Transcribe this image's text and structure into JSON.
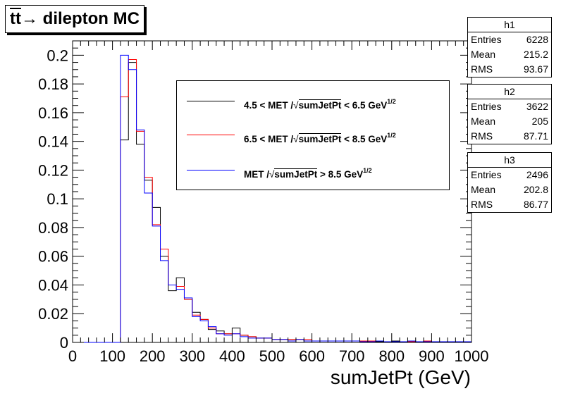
{
  "title": {
    "text": "t̅t→ dilepton MC",
    "tt": "tt",
    "rest": "→ dilepton MC"
  },
  "stats": [
    {
      "name": "h1",
      "entries_label": "Entries",
      "entries": "6228",
      "mean_label": "Mean",
      "mean": "215.2",
      "rms_label": "RMS",
      "rms": "93.67"
    },
    {
      "name": "h2",
      "entries_label": "Entries",
      "entries": "3622",
      "mean_label": "Mean",
      "mean": "205",
      "rms_label": "RMS",
      "rms": "87.71"
    },
    {
      "name": "h3",
      "entries_label": "Entries",
      "entries": "2496",
      "mean_label": "Mean",
      "mean": "202.8",
      "rms_label": "RMS",
      "rms": "86.77"
    }
  ],
  "legend": [
    {
      "pre": "4.5 < MET /",
      "sqrt": "sumJetPt",
      "post": " < 6.5 GeV",
      "sup": "1/2",
      "color": "#000000"
    },
    {
      "pre": "6.5 < MET /",
      "sqrt": "sumJetPt",
      "post": " < 8.5 GeV",
      "sup": "1/2",
      "color": "#ff0000"
    },
    {
      "pre": "MET /",
      "sqrt": "sumJetPt",
      "post": " > 8.5 GeV",
      "sup": "1/2",
      "color": "#0000ff"
    }
  ],
  "chart_data": {
    "type": "histogram",
    "xlabel": "sumJetPt (GeV)",
    "ylabel": "",
    "xlim": [
      0,
      1000
    ],
    "ylim": [
      0,
      0.21
    ],
    "bin_width": 20,
    "x_ticks": [
      "0",
      "100",
      "200",
      "300",
      "400",
      "500",
      "600",
      "700",
      "800",
      "900",
      "1000"
    ],
    "y_ticks": [
      "0",
      "0.02",
      "0.04",
      "0.06",
      "0.08",
      "0.1",
      "0.12",
      "0.14",
      "0.16",
      "0.18",
      "0.2"
    ],
    "series": [
      {
        "name": "h1",
        "color": "#000000",
        "values": [
          0,
          0,
          0,
          0,
          0,
          0,
          0.141,
          0.195,
          0.138,
          0.113,
          0.094,
          0.06,
          0.036,
          0.045,
          0.03,
          0.021,
          0.016,
          0.009,
          0.008,
          0.006,
          0.01,
          0.005,
          0.004,
          0.003,
          0.003,
          0.002,
          0.002,
          0.002,
          0.002,
          0.001,
          0.001,
          0.001,
          0.001,
          0.001,
          0.001,
          0.001,
          0.001,
          0.0005,
          0.0005,
          0.0005,
          0.001,
          0.0005,
          0.0005,
          0.0005,
          0.0005,
          0.0005,
          0.0005,
          0.0005,
          0.0005,
          0.0005
        ]
      },
      {
        "name": "h2",
        "color": "#ff0000",
        "values": [
          0,
          0,
          0,
          0,
          0,
          0,
          0.171,
          0.197,
          0.147,
          0.115,
          0.082,
          0.065,
          0.04,
          0.039,
          0.03,
          0.019,
          0.016,
          0.01,
          0.006,
          0.006,
          0.006,
          0.005,
          0.004,
          0.003,
          0.003,
          0.002,
          0.002,
          0.002,
          0.002,
          0.002,
          0.001,
          0.001,
          0.001,
          0.001,
          0.001,
          0.001,
          0.001,
          0.001,
          0.001,
          0.0005,
          0.0005,
          0.0005,
          0.0005,
          0.0005,
          0.001,
          0.0005,
          0.0005,
          0.0005,
          0.0005,
          0.0005
        ]
      },
      {
        "name": "h3",
        "color": "#0000ff",
        "values": [
          0,
          0,
          0,
          0,
          0,
          0,
          0.2,
          0.19,
          0.148,
          0.104,
          0.081,
          0.057,
          0.04,
          0.037,
          0.031,
          0.018,
          0.015,
          0.011,
          0.006,
          0.005,
          0.006,
          0.004,
          0.003,
          0.003,
          0.003,
          0.002,
          0.002,
          0.001,
          0.002,
          0.001,
          0.001,
          0.001,
          0.001,
          0.001,
          0.001,
          0.001,
          0.0005,
          0.0005,
          0.001,
          0.0005,
          0.0005,
          0.0005,
          0.001,
          0.0005,
          0.0005,
          0.0005,
          0.0005,
          0.0005,
          0.0005,
          0.0005
        ]
      }
    ]
  }
}
